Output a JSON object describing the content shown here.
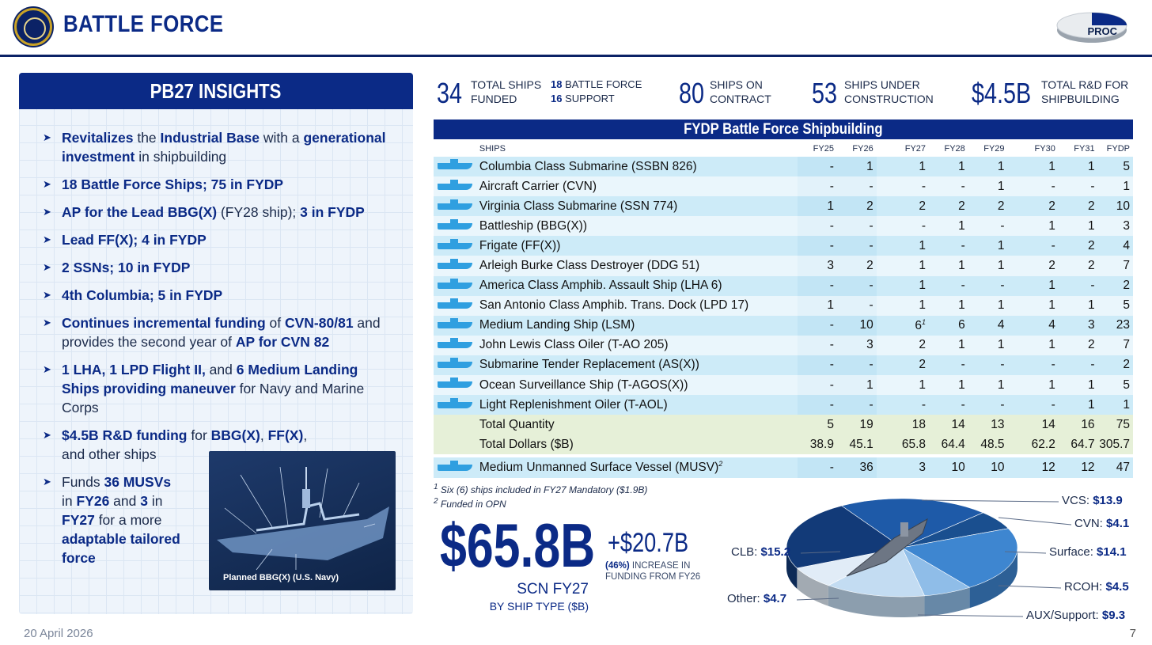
{
  "header": {
    "title": "BATTLE FORCE",
    "badge": "PROC"
  },
  "insights": {
    "title": "PB27 INSIGHTS",
    "bullets": [
      [
        {
          "b": "Revitalizes"
        },
        {
          "t": " the "
        },
        {
          "b": "Industrial Base"
        },
        {
          "t": " with a "
        },
        {
          "b": "generational investment"
        },
        {
          "t": " in shipbuilding"
        }
      ],
      [
        {
          "b": "18 Battle Force Ships; 75 in FYDP"
        }
      ],
      [
        {
          "b": "AP for the Lead BBG(X)"
        },
        {
          "t": " (FY28 ship); "
        },
        {
          "b": "3 in FYDP"
        }
      ],
      [
        {
          "b": "Lead FF(X); 4 in FYDP"
        }
      ],
      [
        {
          "b": "2 SSNs; 10 in FYDP"
        }
      ],
      [
        {
          "b": "4th Columbia; 5 in FYDP"
        }
      ],
      [
        {
          "b": "Continues incremental funding"
        },
        {
          "t": " of "
        },
        {
          "b": "CVN-80/81"
        },
        {
          "t": " and provides the second year of "
        },
        {
          "b": "AP for CVN 82"
        }
      ],
      [
        {
          "b": "1 LHA, 1 LPD Flight II,"
        },
        {
          "t": " and "
        },
        {
          "b": "6 Medium Landing Ships providing maneuver"
        },
        {
          "t": " for Navy and Marine Corps"
        }
      ],
      [
        {
          "b": "$4.5B R&D funding"
        },
        {
          "t": " for "
        },
        {
          "b": "BBG(X)"
        },
        {
          "t": ", "
        },
        {
          "b": "FF(X)"
        },
        {
          "t": ", and other ships"
        }
      ],
      [
        {
          "t": "Funds "
        },
        {
          "b": "36 MUSVs"
        },
        {
          "t": " in "
        },
        {
          "b": "FY26"
        },
        {
          "t": " and "
        },
        {
          "b": "3"
        },
        {
          "t": " in "
        },
        {
          "b": "FY27"
        },
        {
          "t": " for a more "
        },
        {
          "b": "adaptable tailored force"
        }
      ]
    ],
    "image_caption": "Planned BBG(X) (U.S. Navy)"
  },
  "stats": {
    "funded_num": "34",
    "funded_label_1": "TOTAL SHIPS",
    "funded_label_2": "FUNDED",
    "battle_force_num": "18",
    "battle_force_label": "BATTLE FORCE",
    "support_num": "16",
    "support_label": "SUPPORT",
    "contract_num": "80",
    "contract_label_1": "SHIPS ON",
    "contract_label_2": "CONTRACT",
    "construction_num": "53",
    "construction_label_1": "SHIPS UNDER",
    "construction_label_2": "CONSTRUCTION",
    "rd_num": "$4.5B",
    "rd_label_1": "TOTAL R&D FOR",
    "rd_label_2": "SHIPBUILDING"
  },
  "table": {
    "title": "FYDP Battle Force Shipbuilding",
    "headers": [
      "SHIPS",
      "FY25",
      "FY26",
      "FY27",
      "FY28",
      "FY29",
      "FY30",
      "FY31",
      "FYDP"
    ],
    "rows": [
      {
        "name": "Columbia Class Submarine (SSBN 826)",
        "vals": [
          "-",
          "1",
          "1",
          "1",
          "1",
          "1",
          "1",
          "5"
        ]
      },
      {
        "name": "Aircraft Carrier (CVN)",
        "vals": [
          "-",
          "-",
          "-",
          "-",
          "1",
          "-",
          "-",
          "1"
        ]
      },
      {
        "name": "Virginia Class Submarine (SSN 774)",
        "vals": [
          "1",
          "2",
          "2",
          "2",
          "2",
          "2",
          "2",
          "10"
        ]
      },
      {
        "name": "Battleship (BBG(X))",
        "vals": [
          "-",
          "-",
          "-",
          "1",
          "-",
          "1",
          "1",
          "3"
        ]
      },
      {
        "name": "Frigate (FF(X))",
        "vals": [
          "-",
          "-",
          "1",
          "-",
          "1",
          "-",
          "2",
          "4"
        ]
      },
      {
        "name": "Arleigh Burke Class Destroyer (DDG 51)",
        "vals": [
          "3",
          "2",
          "1",
          "1",
          "1",
          "2",
          "2",
          "7"
        ]
      },
      {
        "name": "America Class Amphib. Assault Ship (LHA 6)",
        "vals": [
          "-",
          "-",
          "1",
          "-",
          "-",
          "1",
          "-",
          "2"
        ]
      },
      {
        "name": "San Antonio Class Amphib. Trans. Dock (LPD 17)",
        "vals": [
          "1",
          "-",
          "1",
          "1",
          "1",
          "1",
          "1",
          "5"
        ]
      },
      {
        "name": "Medium Landing Ship (LSM)",
        "vals": [
          "-",
          "10",
          "6",
          "6",
          "4",
          "4",
          "3",
          "23"
        ],
        "note": "1"
      },
      {
        "name": "John Lewis Class Oiler (T-AO 205)",
        "vals": [
          "-",
          "3",
          "2",
          "1",
          "1",
          "1",
          "2",
          "7"
        ]
      },
      {
        "name": "Submarine Tender Replacement (AS(X))",
        "vals": [
          "-",
          "-",
          "2",
          "-",
          "-",
          "-",
          "-",
          "2"
        ]
      },
      {
        "name": "Ocean Surveillance Ship (T-AGOS(X))",
        "vals": [
          "-",
          "1",
          "1",
          "1",
          "1",
          "1",
          "1",
          "5"
        ]
      },
      {
        "name": "Light Replenishment Oiler (T-AOL)",
        "vals": [
          "-",
          "-",
          "-",
          "-",
          "-",
          "-",
          "1",
          "1"
        ]
      }
    ],
    "total_quantity": {
      "name": "Total Quantity",
      "vals": [
        "5",
        "19",
        "18",
        "14",
        "13",
        "14",
        "16",
        "75"
      ]
    },
    "total_dollars": {
      "name": "Total Dollars ($B)",
      "vals": [
        "38.9",
        "45.1",
        "65.8",
        "64.4",
        "48.5",
        "62.2",
        "64.7",
        "305.7"
      ]
    },
    "musv": {
      "name": "Medium Unmanned Surface Vessel (MUSV)",
      "note": "2",
      "vals": [
        "-",
        "36",
        "3",
        "10",
        "10",
        "12",
        "12",
        "47"
      ]
    }
  },
  "footnotes": {
    "n1_mark": "1",
    "n1_text": "Six (6) ships included in FY27 Mandatory ($1.9B)",
    "n2_mark": "2",
    "n2_text": "Funded in OPN"
  },
  "totals": {
    "big": "$65.8B",
    "increase": "+$20.7B",
    "increase_pct": "(46%)",
    "increase_text_1": "INCREASE IN",
    "increase_text_2": "FUNDING FROM FY26",
    "scn_label": "SCN FY27",
    "scn_sub": "BY SHIP TYPE ($B)"
  },
  "chart_data": {
    "type": "pie",
    "title": "",
    "slices": [
      {
        "label": "VCS:",
        "value": 13.9,
        "value_text": "$13.9",
        "color": "#1e5aa8"
      },
      {
        "label": "CVN:",
        "value": 4.1,
        "value_text": "$4.1",
        "color": "#1a4f8f"
      },
      {
        "label": "Surface:",
        "value": 14.1,
        "value_text": "$14.1",
        "color": "#3e86d0"
      },
      {
        "label": "RCOH:",
        "value": 4.5,
        "value_text": "$4.5",
        "color": "#8fbde8"
      },
      {
        "label": "AUX/Support:",
        "value": 9.3,
        "value_text": "$9.3",
        "color": "#c3dcf2"
      },
      {
        "label": "Other:",
        "value": 4.7,
        "value_text": "$4.7",
        "color": "#e1ecf7"
      },
      {
        "label": "CLB:",
        "value": 15.2,
        "value_text": "$15.2",
        "color": "#123a78"
      }
    ]
  },
  "footer": {
    "date": "20 April 2026",
    "page": "7"
  },
  "colors": {
    "navy": "#0b2a86",
    "light_row": "#cdebf8",
    "total_row": "#e6f0d8"
  }
}
